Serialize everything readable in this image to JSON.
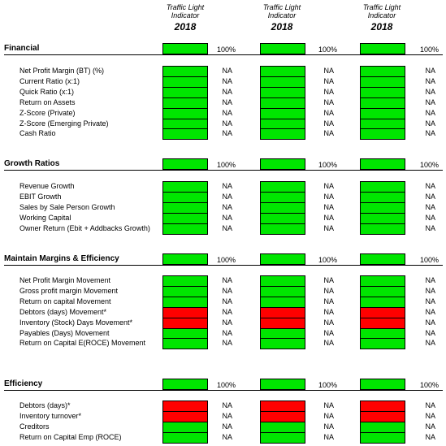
{
  "columns": [
    {
      "title": "Traffic Light Indicator",
      "year": "2018"
    },
    {
      "title": "Traffic Light Indicator",
      "year": "2018"
    },
    {
      "title": "Traffic Light Indicator",
      "year": "2018"
    }
  ],
  "sections": [
    {
      "title": "Financial",
      "totals": [
        {
          "text": "100%",
          "color": "#00e600"
        },
        {
          "text": "100%",
          "color": "#00e600"
        },
        {
          "text": "100%",
          "color": "#00e600"
        }
      ],
      "rows": [
        {
          "label": "Net Profit Margin (BT) (%)",
          "cells": [
            {
              "text": "NA",
              "color": "#00e600"
            },
            {
              "text": "NA",
              "color": "#00e600"
            },
            {
              "text": "NA",
              "color": "#00e600"
            }
          ]
        },
        {
          "label": "Current Ratio (x:1)",
          "cells": [
            {
              "text": "NA",
              "color": "#00e600"
            },
            {
              "text": "NA",
              "color": "#00e600"
            },
            {
              "text": "NA",
              "color": "#00e600"
            }
          ]
        },
        {
          "label": "Quick Ratio (x:1)",
          "cells": [
            {
              "text": "NA",
              "color": "#00e600"
            },
            {
              "text": "NA",
              "color": "#00e600"
            },
            {
              "text": "NA",
              "color": "#00e600"
            }
          ]
        },
        {
          "label": "Return on Assets",
          "cells": [
            {
              "text": "NA",
              "color": "#00e600"
            },
            {
              "text": "NA",
              "color": "#00e600"
            },
            {
              "text": "NA",
              "color": "#00e600"
            }
          ]
        },
        {
          "label": "Z-Score (Private)",
          "cells": [
            {
              "text": "NA",
              "color": "#00e600"
            },
            {
              "text": "NA",
              "color": "#00e600"
            },
            {
              "text": "NA",
              "color": "#00e600"
            }
          ]
        },
        {
          "label": "Z-Score (Emerging Private)",
          "cells": [
            {
              "text": "NA",
              "color": "#00e600"
            },
            {
              "text": "NA",
              "color": "#00e600"
            },
            {
              "text": "NA",
              "color": "#00e600"
            }
          ]
        },
        {
          "label": "Cash Ratio",
          "cells": [
            {
              "text": "NA",
              "color": "#00e600"
            },
            {
              "text": "NA",
              "color": "#00e600"
            },
            {
              "text": "NA",
              "color": "#00e600"
            }
          ]
        }
      ]
    },
    {
      "title": "Growth Ratios",
      "totals": [
        {
          "text": "100%",
          "color": "#00e600"
        },
        {
          "text": "100%",
          "color": "#00e600"
        },
        {
          "text": "100%",
          "color": "#00e600"
        }
      ],
      "rows": [
        {
          "label": "Revenue Growth",
          "cells": [
            {
              "text": "NA",
              "color": "#00e600"
            },
            {
              "text": "NA",
              "color": "#00e600"
            },
            {
              "text": "NA",
              "color": "#00e600"
            }
          ]
        },
        {
          "label": "EBIT Growth",
          "cells": [
            {
              "text": "NA",
              "color": "#00e600"
            },
            {
              "text": "NA",
              "color": "#00e600"
            },
            {
              "text": "NA",
              "color": "#00e600"
            }
          ]
        },
        {
          "label": "Sales by Sale Person Growth",
          "cells": [
            {
              "text": "NA",
              "color": "#00e600"
            },
            {
              "text": "NA",
              "color": "#00e600"
            },
            {
              "text": "NA",
              "color": "#00e600"
            }
          ]
        },
        {
          "label": "Working Capital",
          "cells": [
            {
              "text": "NA",
              "color": "#00e600"
            },
            {
              "text": "NA",
              "color": "#00e600"
            },
            {
              "text": "NA",
              "color": "#00e600"
            }
          ]
        },
        {
          "label": "Owner Return (Ebit + Addbacks Growth)",
          "cells": [
            {
              "text": "NA",
              "color": "#00e600"
            },
            {
              "text": "NA",
              "color": "#00e600"
            },
            {
              "text": "NA",
              "color": "#00e600"
            }
          ]
        }
      ]
    },
    {
      "title": "Maintain Margins & Efficiency",
      "totals": [
        {
          "text": "100%",
          "color": "#00e600"
        },
        {
          "text": "100%",
          "color": "#00e600"
        },
        {
          "text": "100%",
          "color": "#00e600"
        }
      ],
      "rows": [
        {
          "label": "Net Profit Margin Movement",
          "cells": [
            {
              "text": "NA",
              "color": "#00e600"
            },
            {
              "text": "NA",
              "color": "#00e600"
            },
            {
              "text": "NA",
              "color": "#00e600"
            }
          ]
        },
        {
          "label": "Gross profit margin Movement",
          "cells": [
            {
              "text": "NA",
              "color": "#00e600"
            },
            {
              "text": "NA",
              "color": "#00e600"
            },
            {
              "text": "NA",
              "color": "#00e600"
            }
          ]
        },
        {
          "label": "Return on capital Movement",
          "cells": [
            {
              "text": "NA",
              "color": "#00e600"
            },
            {
              "text": "NA",
              "color": "#00e600"
            },
            {
              "text": "NA",
              "color": "#00e600"
            }
          ]
        },
        {
          "label": "Debtors (days) Movement*",
          "cells": [
            {
              "text": "NA",
              "color": "#ff0000"
            },
            {
              "text": "NA",
              "color": "#ff0000"
            },
            {
              "text": "NA",
              "color": "#ff0000"
            }
          ]
        },
        {
          "label": "Inventory (Stock) Days Movement*",
          "cells": [
            {
              "text": "NA",
              "color": "#ff0000"
            },
            {
              "text": "NA",
              "color": "#ff0000"
            },
            {
              "text": "NA",
              "color": "#ff0000"
            }
          ]
        },
        {
          "label": "Payables (Days) Movement",
          "cells": [
            {
              "text": "NA",
              "color": "#00e600"
            },
            {
              "text": "NA",
              "color": "#00e600"
            },
            {
              "text": "NA",
              "color": "#00e600"
            }
          ]
        },
        {
          "label": "Return on Capital E(ROCE) Movement",
          "cells": [
            {
              "text": "NA",
              "color": "#00e600"
            },
            {
              "text": "NA",
              "color": "#00e600"
            },
            {
              "text": "NA",
              "color": "#00e600"
            }
          ]
        }
      ]
    },
    {
      "title": "Efficiency",
      "totals": [
        {
          "text": "100%",
          "color": "#00e600"
        },
        {
          "text": "100%",
          "color": "#00e600"
        },
        {
          "text": "100%",
          "color": "#00e600"
        }
      ],
      "rows": [
        {
          "label": "Debtors (days)*",
          "cells": [
            {
              "text": "NA",
              "color": "#ff0000"
            },
            {
              "text": "NA",
              "color": "#ff0000"
            },
            {
              "text": "NA",
              "color": "#ff0000"
            }
          ]
        },
        {
          "label": "Inventory turnover*",
          "cells": [
            {
              "text": "NA",
              "color": "#ff0000"
            },
            {
              "text": "NA",
              "color": "#ff0000"
            },
            {
              "text": "NA",
              "color": "#ff0000"
            }
          ]
        },
        {
          "label": "Creditors",
          "cells": [
            {
              "text": "NA",
              "color": "#00e600"
            },
            {
              "text": "NA",
              "color": "#00e600"
            },
            {
              "text": "NA",
              "color": "#00e600"
            }
          ]
        },
        {
          "label": "Return on Capital Emp (ROCE)",
          "cells": [
            {
              "text": "NA",
              "color": "#00e600"
            },
            {
              "text": "NA",
              "color": "#00e600"
            },
            {
              "text": "NA",
              "color": "#00e600"
            }
          ]
        }
      ]
    }
  ]
}
